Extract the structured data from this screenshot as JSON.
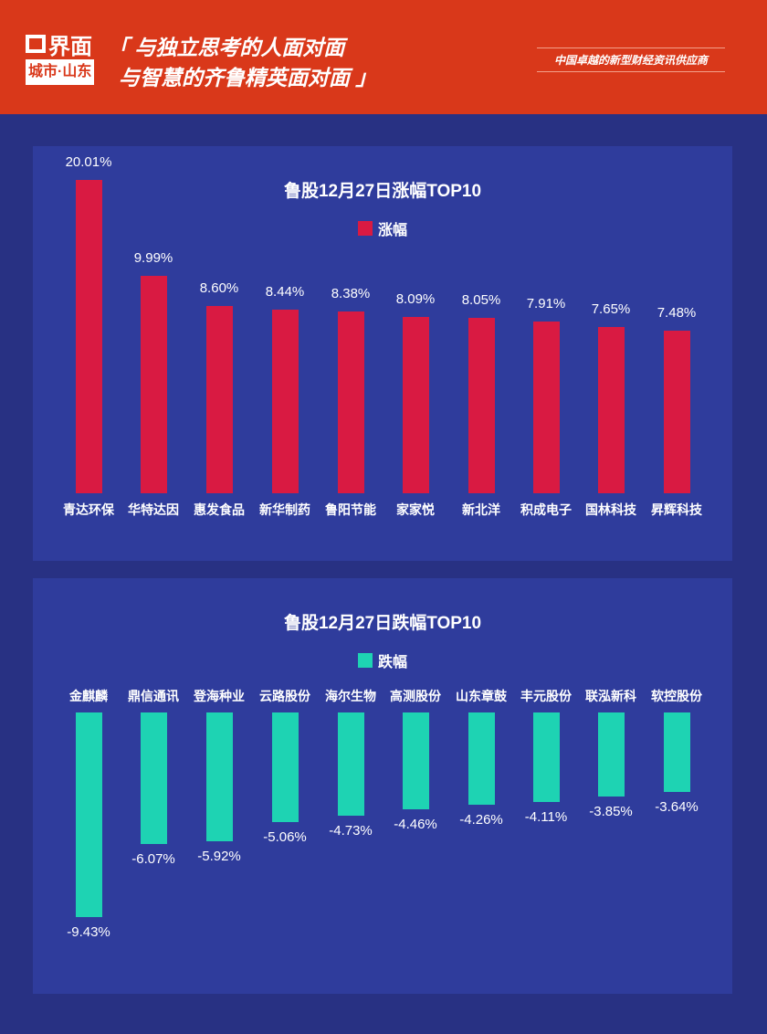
{
  "header": {
    "logo_main": "界面",
    "logo_sub": "城市·山东",
    "slogan_line1": "「 与独立思考的人面对面",
    "slogan_line2": "与智慧的齐鲁精英面对面 」",
    "tagline": "中国卓越的新型财经资讯供应商"
  },
  "chart_data": [
    {
      "type": "bar",
      "title": "鲁股12月27日涨幅TOP10",
      "legend": "涨幅",
      "color": "#d91a42",
      "categories": [
        "青达环保",
        "华特达因",
        "惠发食品",
        "新华制药",
        "鲁阳节能",
        "家家悦",
        "新北洋",
        "积成电子",
        "国林科技",
        "昇辉科技"
      ],
      "values": [
        20.01,
        9.99,
        8.6,
        8.44,
        8.38,
        8.09,
        8.05,
        7.91,
        7.65,
        7.48
      ],
      "labels": [
        "20.01%",
        "9.99%",
        "8.60%",
        "8.44%",
        "8.38%",
        "8.09%",
        "8.05%",
        "7.91%",
        "7.65%",
        "7.48%"
      ]
    },
    {
      "type": "bar",
      "title": "鲁股12月27日跌幅TOP10",
      "legend": "跌幅",
      "color": "#1ed3b3",
      "categories": [
        "金麒麟",
        "鼎信通讯",
        "登海种业",
        "云路股份",
        "海尔生物",
        "高测股份",
        "山东章鼓",
        "丰元股份",
        "联泓新科",
        "软控股份"
      ],
      "values": [
        -9.43,
        -6.07,
        -5.92,
        -5.06,
        -4.73,
        -4.46,
        -4.26,
        -4.11,
        -3.85,
        -3.64
      ],
      "labels": [
        "-9.43%",
        "-6.07%",
        "-5.92%",
        "-5.06%",
        "-4.73%",
        "-4.46%",
        "-4.26%",
        "-4.11%",
        "-3.85%",
        "-3.64%"
      ]
    }
  ]
}
